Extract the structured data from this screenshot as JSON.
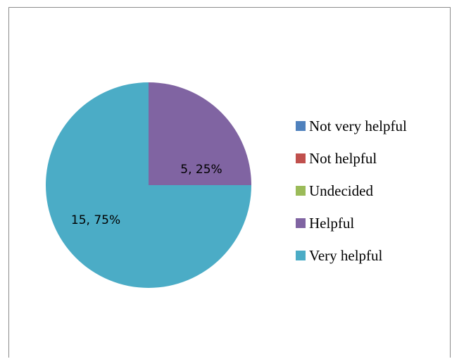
{
  "chart_data": {
    "type": "pie",
    "title": "",
    "categories": [
      "Not very helpful",
      "Not helpful",
      "Undecided",
      "Helpful",
      "Very helpful"
    ],
    "values": [
      0,
      0,
      0,
      5,
      15
    ],
    "percentages": [
      "0%",
      "0%",
      "0%",
      "25%",
      "75%"
    ],
    "colors": [
      "#4f81bd",
      "#c0504d",
      "#9bbb59",
      "#8064a2",
      "#4bacc6"
    ],
    "data_labels": [
      "",
      "",
      "",
      "5, 25%",
      "15, 75%"
    ],
    "start_angle_deg": 0,
    "direction": "clockwise",
    "legend_position": "right"
  }
}
